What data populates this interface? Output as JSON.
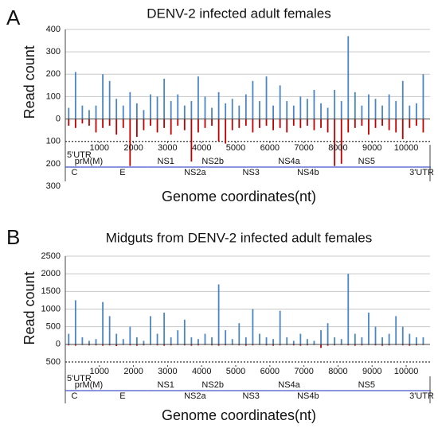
{
  "chart_data": [
    {
      "type": "mirror-bar",
      "panel": "A",
      "title": "DENV-2 infected adult females",
      "ylabel": "Read count",
      "xlabel": "Genome coordinates(nt)",
      "xlim": [
        0,
        10700
      ],
      "xticks": [
        1000,
        2000,
        3000,
        4000,
        5000,
        6000,
        7000,
        8000,
        9000,
        10000
      ],
      "ylim": [
        -300,
        400
      ],
      "yticks": [
        400,
        300,
        200,
        100,
        0,
        {
          "value": -100,
          "label": "100"
        },
        {
          "value": -200,
          "label": "200"
        },
        {
          "value": -300,
          "label": "300"
        }
      ],
      "grid": true,
      "x": [
        100,
        300,
        500,
        700,
        900,
        1100,
        1300,
        1500,
        1700,
        1900,
        2100,
        2300,
        2500,
        2700,
        2900,
        3100,
        3300,
        3500,
        3700,
        3900,
        4100,
        4300,
        4500,
        4700,
        4900,
        5100,
        5300,
        5500,
        5700,
        5900,
        6100,
        6300,
        6500,
        6700,
        6900,
        7100,
        7300,
        7500,
        7700,
        7900,
        8100,
        8300,
        8500,
        8700,
        8900,
        9100,
        9300,
        9500,
        9700,
        9900,
        10100,
        10300,
        10500
      ],
      "series": [
        {
          "color": "#4a86c5",
          "values": [
            50,
            210,
            60,
            40,
            60,
            200,
            170,
            90,
            60,
            120,
            70,
            40,
            110,
            100,
            180,
            80,
            110,
            60,
            80,
            190,
            100,
            50,
            120,
            70,
            90,
            60,
            110,
            170,
            80,
            190,
            60,
            150,
            80,
            60,
            100,
            90,
            130,
            70,
            50,
            130,
            80,
            370,
            120,
            60,
            110,
            90,
            60,
            110,
            80,
            170,
            60,
            70,
            200
          ]
        },
        {
          "color": "#c00000",
          "values": [
            -30,
            -40,
            -20,
            -30,
            -60,
            -40,
            -30,
            -70,
            -40,
            -210,
            -80,
            -50,
            -30,
            -60,
            -40,
            -70,
            -30,
            -50,
            -190,
            -60,
            -40,
            -30,
            -100,
            -110,
            -50,
            -40,
            -30,
            -60,
            -40,
            -30,
            -50,
            -40,
            -60,
            -30,
            -40,
            -30,
            -50,
            -40,
            -60,
            -210,
            -200,
            -60,
            -40,
            -30,
            -70,
            -40,
            -30,
            -50,
            -60,
            -90,
            -40,
            -30,
            -60
          ]
        }
      ],
      "genes": [
        {
          "name": "5'UTR",
          "start": 1,
          "end": 96
        },
        {
          "name": "C",
          "start": 97,
          "end": 438
        },
        {
          "name": "prM(M)",
          "start": 439,
          "end": 936
        },
        {
          "name": "E",
          "start": 937,
          "end": 2421
        },
        {
          "name": "NS1",
          "start": 2422,
          "end": 3477
        },
        {
          "name": "NS2a",
          "start": 3478,
          "end": 4131
        },
        {
          "name": "NS2b",
          "start": 4132,
          "end": 4521
        },
        {
          "name": "NS3",
          "start": 4522,
          "end": 6375
        },
        {
          "name": "NS4a",
          "start": 6376,
          "end": 6756
        },
        {
          "name": "NS4b",
          "start": 6757,
          "end": 7488
        },
        {
          "name": "NS5",
          "start": 7489,
          "end": 10188
        },
        {
          "name": "3'UTR",
          "start": 10189,
          "end": 10723
        }
      ]
    },
    {
      "type": "mirror-bar",
      "panel": "B",
      "title": "Midguts from DENV-2 infected adult females",
      "ylabel": "Read count",
      "xlabel": "Genome coordinates(nt)",
      "xlim": [
        0,
        10700
      ],
      "xticks": [
        1000,
        2000,
        3000,
        4000,
        5000,
        6000,
        7000,
        8000,
        9000,
        10000
      ],
      "ylim": [
        -500,
        2500
      ],
      "yticks": [
        2500,
        2000,
        1500,
        1000,
        500,
        0,
        {
          "value": -500,
          "label": "500"
        }
      ],
      "grid": true,
      "x": [
        100,
        300,
        500,
        700,
        900,
        1100,
        1300,
        1500,
        1700,
        1900,
        2100,
        2300,
        2500,
        2700,
        2900,
        3100,
        3300,
        3500,
        3700,
        3900,
        4100,
        4300,
        4500,
        4700,
        4900,
        5100,
        5300,
        5500,
        5700,
        5900,
        6100,
        6300,
        6500,
        6700,
        6900,
        7100,
        7300,
        7500,
        7700,
        7900,
        8100,
        8300,
        8500,
        8700,
        8900,
        9100,
        9300,
        9500,
        9700,
        9900,
        10100,
        10300,
        10500
      ],
      "series": [
        {
          "color": "#4a86c5",
          "values": [
            300,
            1250,
            200,
            100,
            150,
            1200,
            800,
            300,
            150,
            500,
            200,
            100,
            800,
            300,
            900,
            200,
            400,
            700,
            200,
            150,
            300,
            200,
            1700,
            400,
            150,
            600,
            200,
            1000,
            300,
            200,
            150,
            950,
            200,
            100,
            300,
            150,
            100,
            400,
            600,
            200,
            150,
            2000,
            300,
            200,
            900,
            500,
            200,
            300,
            800,
            500,
            300,
            200,
            200
          ]
        },
        {
          "color": "#c00000",
          "values": [
            -30,
            -40,
            -20,
            -30,
            -30,
            -40,
            -30,
            -50,
            -20,
            -30,
            -40,
            -30,
            -20,
            -30,
            -40,
            -30,
            -20,
            -30,
            -40,
            -30,
            -20,
            -30,
            -40,
            -30,
            -20,
            -30,
            -40,
            -30,
            -20,
            -30,
            -40,
            -30,
            -20,
            -30,
            -40,
            -30,
            -20,
            -100,
            -40,
            -30,
            -20,
            -30,
            -40,
            -30,
            -20,
            -30,
            -40,
            -30,
            -20,
            -30,
            -40,
            -30,
            -20
          ]
        }
      ],
      "genes": [
        {
          "name": "5'UTR",
          "start": 1,
          "end": 96
        },
        {
          "name": "C",
          "start": 97,
          "end": 438
        },
        {
          "name": "prM(M)",
          "start": 439,
          "end": 936
        },
        {
          "name": "E",
          "start": 937,
          "end": 2421
        },
        {
          "name": "NS1",
          "start": 2422,
          "end": 3477
        },
        {
          "name": "NS2a",
          "start": 3478,
          "end": 4131
        },
        {
          "name": "NS2b",
          "start": 4132,
          "end": 4521
        },
        {
          "name": "NS3",
          "start": 4522,
          "end": 6375
        },
        {
          "name": "NS4a",
          "start": 6376,
          "end": 6756
        },
        {
          "name": "NS4b",
          "start": 6757,
          "end": 7488
        },
        {
          "name": "NS5",
          "start": 7489,
          "end": 10188
        },
        {
          "name": "3'UTR",
          "start": 10189,
          "end": 10723
        }
      ]
    }
  ]
}
